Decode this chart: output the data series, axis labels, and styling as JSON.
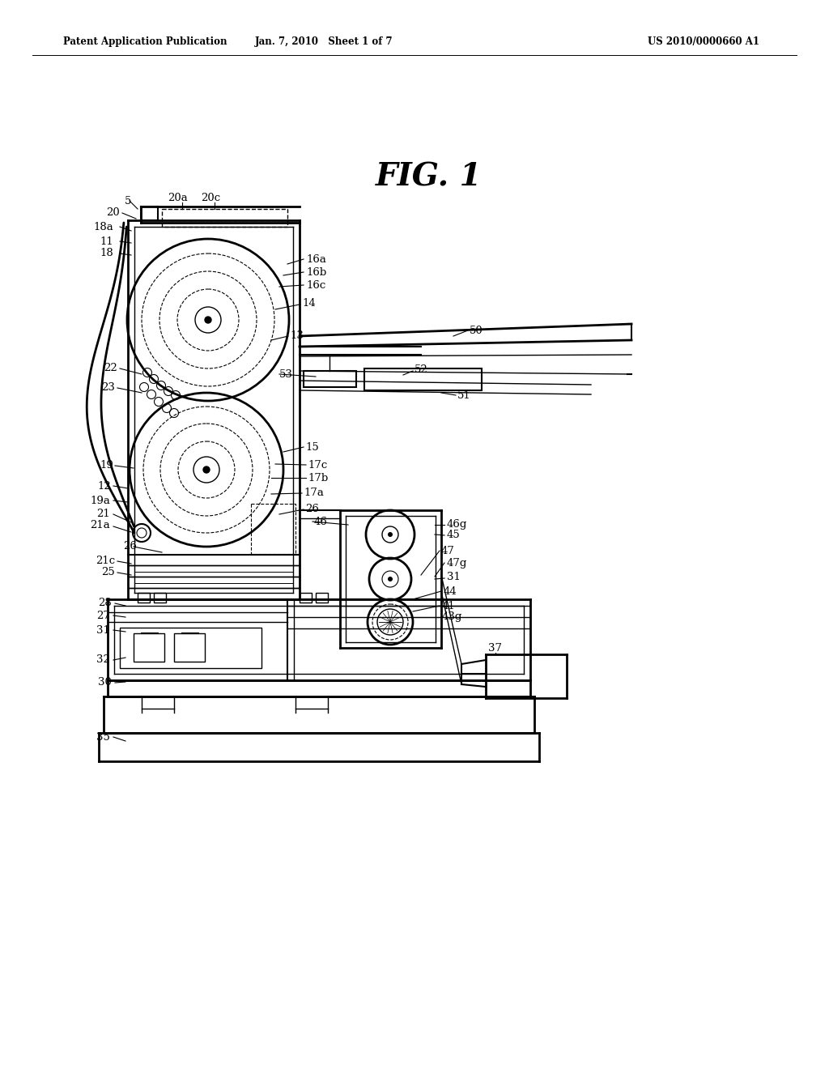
{
  "bg_color": "#ffffff",
  "header_left": "Patent Application Publication",
  "header_center": "Jan. 7, 2010   Sheet 1 of 7",
  "header_right": "US 2010/0000660 A1",
  "fig_title": "FIG. 1"
}
